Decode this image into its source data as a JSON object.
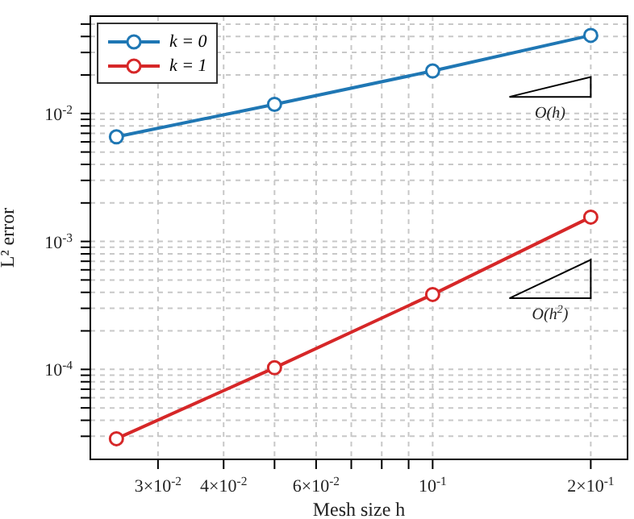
{
  "chart_data": {
    "type": "line",
    "xlabel": "Mesh size h",
    "ylabel": "L² error",
    "x": [
      0.025,
      0.05,
      0.1,
      0.2
    ],
    "series": [
      {
        "name": "k = 0",
        "color": "#1f77b4",
        "values": [
          0.00657,
          0.0118,
          0.0215,
          0.0408
        ]
      },
      {
        "name": "k = 1",
        "color": "#d62728",
        "values": [
          2.87e-05,
          0.000103,
          0.000385,
          0.00155
        ]
      }
    ],
    "log": "xy",
    "xlim": [
      0.0223,
      0.235
    ],
    "ylim": [
      1.98e-05,
      0.0577
    ],
    "xticks": [
      {
        "value": 0.03,
        "label": "3×10$^{-2}$"
      },
      {
        "value": 0.04,
        "label": "4×10$^{-2}$"
      },
      {
        "value": 0.05,
        "label": null
      },
      {
        "value": 0.06,
        "label": "6×10$^{-2}$"
      },
      {
        "value": 0.07,
        "label": null
      },
      {
        "value": 0.08,
        "label": null
      },
      {
        "value": 0.09,
        "label": null
      },
      {
        "value": 0.1,
        "label": "10$^{-1}$"
      },
      {
        "value": 0.2,
        "label": "2×10$^{-1}$"
      }
    ],
    "yticks": [
      {
        "value": 3e-05,
        "label": null
      },
      {
        "value": 4e-05,
        "label": null
      },
      {
        "value": 5e-05,
        "label": null
      },
      {
        "value": 6e-05,
        "label": null
      },
      {
        "value": 7e-05,
        "label": null
      },
      {
        "value": 8e-05,
        "label": null
      },
      {
        "value": 9e-05,
        "label": null
      },
      {
        "value": 0.0001,
        "label": "10$^{-4}$"
      },
      {
        "value": 0.0002,
        "label": null
      },
      {
        "value": 0.0003,
        "label": null
      },
      {
        "value": 0.0004,
        "label": null
      },
      {
        "value": 0.0005,
        "label": null
      },
      {
        "value": 0.0006,
        "label": null
      },
      {
        "value": 0.0007,
        "label": null
      },
      {
        "value": 0.0008,
        "label": null
      },
      {
        "value": 0.0009,
        "label": null
      },
      {
        "value": 0.001,
        "label": "10$^{-3}$"
      },
      {
        "value": 0.002,
        "label": null
      },
      {
        "value": 0.003,
        "label": null
      },
      {
        "value": 0.004,
        "label": null
      },
      {
        "value": 0.005,
        "label": null
      },
      {
        "value": 0.006,
        "label": null
      },
      {
        "value": 0.007,
        "label": null
      },
      {
        "value": 0.008,
        "label": null
      },
      {
        "value": 0.009,
        "label": null
      },
      {
        "value": 0.01,
        "label": "10$^{-2}$"
      },
      {
        "value": 0.02,
        "label": null
      },
      {
        "value": 0.03,
        "label": null
      },
      {
        "value": 0.04,
        "label": null
      },
      {
        "value": 0.05,
        "label": null
      }
    ],
    "grid": true,
    "legend": "top left",
    "marker": "circle",
    "line_style": "solid",
    "annotations": [
      "O(h)",
      "O(h$^{2}$)"
    ]
  }
}
